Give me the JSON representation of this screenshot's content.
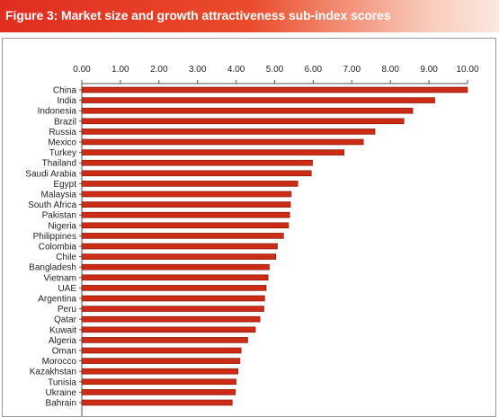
{
  "header": {
    "title": "Figure 3: Market size and growth attractiveness sub-index scores",
    "background_color": "#e02d20"
  },
  "chart_data": {
    "type": "bar",
    "orientation": "horizontal",
    "title": "",
    "xlabel": "",
    "ylabel": "",
    "xlim": [
      0,
      10
    ],
    "x_ticks": [
      "0.00",
      "1.00",
      "2.00",
      "3.00",
      "4.00",
      "5.00",
      "6.00",
      "7.00",
      "8.00",
      "9.00",
      "10.00"
    ],
    "x_axis_position": "top",
    "grid": false,
    "legend": "none",
    "bar_color": "#cc2b15",
    "bar_edge_color": "#7a1408",
    "categories": [
      "China",
      "India",
      "Indonesia",
      "Brazil",
      "Russia",
      "Mexico",
      "Turkey",
      "Thailand",
      "Saudi Arabia",
      "Egypt",
      "Malaysia",
      "South Africa",
      "Pakistan",
      "Nigeria",
      "Philippines",
      "Colombia",
      "Chile",
      "Bangladesh",
      "Vietnam",
      "UAE",
      "Argentina",
      "Peru",
      "Qatar",
      "Kuwait",
      "Algeria",
      "Oman",
      "Morocco",
      "Kazakhstan",
      "Tunisia",
      "Ukraine",
      "Bahrain"
    ],
    "values": [
      10.0,
      9.15,
      8.58,
      8.35,
      7.6,
      7.3,
      6.8,
      5.98,
      5.95,
      5.6,
      5.43,
      5.41,
      5.39,
      5.36,
      5.23,
      5.07,
      5.03,
      4.86,
      4.83,
      4.78,
      4.74,
      4.72,
      4.62,
      4.5,
      4.3,
      4.13,
      4.1,
      4.05,
      4.0,
      3.98,
      3.9
    ]
  }
}
